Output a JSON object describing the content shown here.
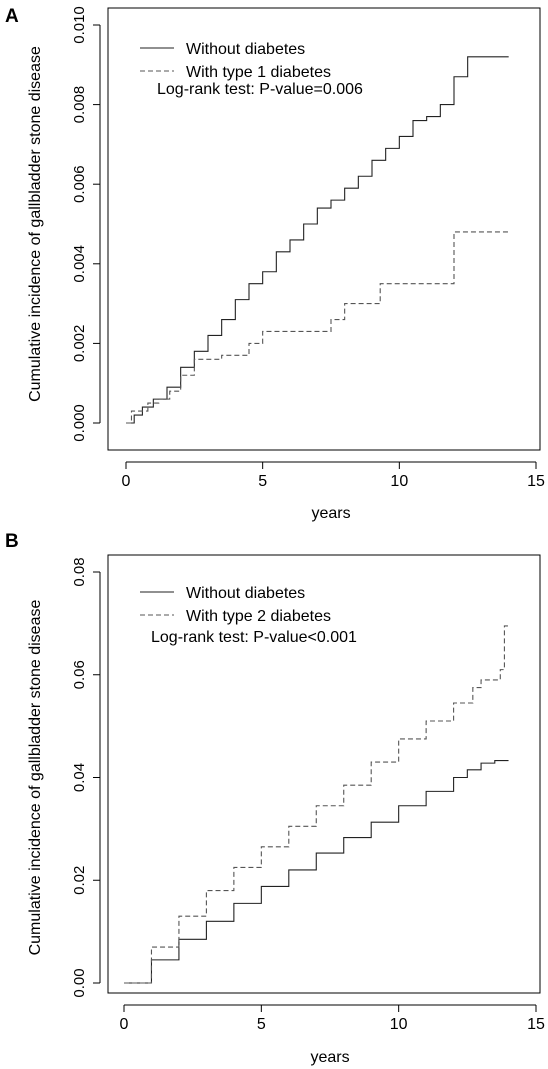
{
  "chart_data": [
    {
      "panel_label": "A",
      "type": "line",
      "xlabel": "years",
      "ylabel": "Cumulative incidence of gallbladder stone disease",
      "xlim": [
        0,
        15
      ],
      "ylim": [
        0,
        0.01
      ],
      "x_ticks": [
        "0",
        "5",
        "10",
        "15"
      ],
      "y_ticks": [
        "0.000",
        "0.002",
        "0.004",
        "0.006",
        "0.008",
        "0.010"
      ],
      "legend_position": "top-left",
      "annotation": "Log-rank test: P-value=0.006",
      "grid": false,
      "series": [
        {
          "name": "Without diabetes",
          "style": "solid",
          "x": [
            0,
            0.3,
            0.6,
            1.0,
            1.5,
            2.0,
            2.5,
            3.0,
            3.5,
            4.0,
            4.5,
            5.0,
            5.5,
            6.0,
            6.5,
            7.0,
            7.5,
            8.0,
            8.5,
            9.0,
            9.5,
            10.0,
            10.5,
            11.0,
            11.5,
            12.0,
            12.5,
            13.0,
            13.5,
            14.0
          ],
          "values": [
            0,
            0.0002,
            0.0004,
            0.0006,
            0.0009,
            0.0014,
            0.0018,
            0.0022,
            0.0026,
            0.0031,
            0.0035,
            0.0038,
            0.0043,
            0.0046,
            0.005,
            0.0054,
            0.0056,
            0.0059,
            0.0062,
            0.0066,
            0.0069,
            0.0072,
            0.0076,
            0.0077,
            0.008,
            0.0087,
            0.0092,
            0.0092,
            0.0092,
            0.0092
          ]
        },
        {
          "name": "With type 1 diabetes",
          "style": "dashed",
          "x": [
            0,
            0.2,
            0.8,
            1.2,
            1.6,
            2.0,
            2.5,
            3.5,
            4.5,
            5.0,
            6.0,
            7.0,
            7.5,
            8.0,
            9.3,
            10.0,
            11.0,
            12.0,
            13.0,
            14.0
          ],
          "values": [
            0,
            0.0003,
            0.0005,
            0.0006,
            0.0008,
            0.0012,
            0.0016,
            0.0017,
            0.002,
            0.0023,
            0.0023,
            0.0023,
            0.0026,
            0.003,
            0.0035,
            0.0035,
            0.0035,
            0.0048,
            0.0048,
            0.0048
          ]
        }
      ]
    },
    {
      "panel_label": "B",
      "type": "line",
      "xlabel": "years",
      "ylabel": "Cumulative incidence of gallbladder stone disease",
      "xlim": [
        0,
        15
      ],
      "ylim": [
        0,
        0.08
      ],
      "x_ticks": [
        "0",
        "5",
        "10",
        "15"
      ],
      "y_ticks": [
        "0.00",
        "0.02",
        "0.04",
        "0.06",
        "0.08"
      ],
      "legend_position": "top-left",
      "annotation": "Log-rank test: P-value<0.001",
      "grid": false,
      "series": [
        {
          "name": "Without diabetes",
          "style": "solid",
          "x": [
            0,
            1,
            2,
            3,
            4,
            5,
            6,
            7,
            8,
            9,
            10,
            11,
            12,
            12.5,
            13,
            13.5,
            14
          ],
          "values": [
            0,
            0.0045,
            0.0085,
            0.012,
            0.0155,
            0.0188,
            0.022,
            0.0253,
            0.0283,
            0.0313,
            0.0345,
            0.0373,
            0.04,
            0.0415,
            0.0428,
            0.0433,
            0.0433
          ]
        },
        {
          "name": "With type 2 diabetes",
          "style": "dashed",
          "x": [
            0,
            1,
            2,
            3,
            4,
            5,
            6,
            7,
            8,
            9,
            10,
            11,
            12,
            12.7,
            13.0,
            13.4,
            13.7,
            13.85,
            14
          ],
          "values": [
            0,
            0.007,
            0.013,
            0.018,
            0.0225,
            0.0265,
            0.0305,
            0.0345,
            0.0385,
            0.043,
            0.0475,
            0.051,
            0.0545,
            0.0575,
            0.059,
            0.059,
            0.061,
            0.0695,
            0.0695
          ]
        }
      ]
    }
  ]
}
